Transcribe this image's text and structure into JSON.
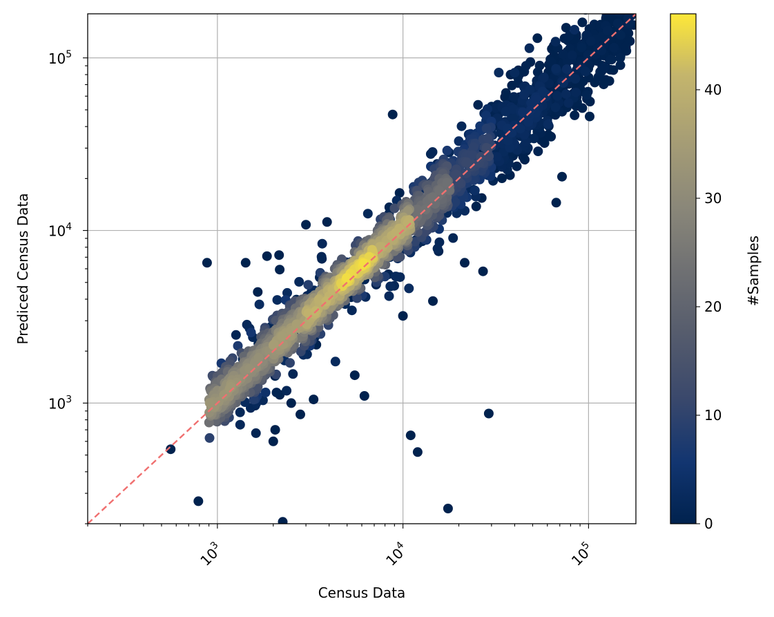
{
  "chart_data": {
    "type": "scatter",
    "title": "",
    "xlabel": "Census Data",
    "ylabel": "Prediced Census Data",
    "xscale": "log",
    "yscale": "log",
    "xlim": [
      200,
      180000
    ],
    "ylim": [
      200,
      180000
    ],
    "grid": true,
    "x_tick_labels": [
      {
        "base": "10",
        "exp": "3",
        "value": 1000
      },
      {
        "base": "10",
        "exp": "4",
        "value": 10000
      },
      {
        "base": "10",
        "exp": "5",
        "value": 100000
      }
    ],
    "y_tick_labels": [
      {
        "base": "10",
        "exp": "3",
        "value": 1000
      },
      {
        "base": "10",
        "exp": "4",
        "value": 10000
      },
      {
        "base": "10",
        "exp": "5",
        "value": 100000
      }
    ],
    "reference_line": {
      "style": "dashed",
      "color": "#f07070",
      "from": [
        200,
        200
      ],
      "to": [
        180000,
        180000
      ]
    },
    "colorbar": {
      "label": "#Samples",
      "colormap": "cividis",
      "range": [
        0,
        47
      ],
      "ticks": [
        "0",
        "10",
        "20",
        "30",
        "40"
      ],
      "tick_values": [
        0,
        10,
        20,
        30,
        40
      ]
    },
    "points_note_outliers": [
      {
        "x": 880,
        "y": 6500,
        "c": 0
      },
      {
        "x": 1420,
        "y": 6500,
        "c": 0
      },
      {
        "x": 1850,
        "y": 7100,
        "c": 0
      },
      {
        "x": 2150,
        "y": 7200,
        "c": 0
      },
      {
        "x": 1650,
        "y": 4400,
        "c": 0
      },
      {
        "x": 560,
        "y": 540,
        "c": 0
      },
      {
        "x": 790,
        "y": 270,
        "c": 0
      },
      {
        "x": 2250,
        "y": 205,
        "c": 0
      },
      {
        "x": 17500,
        "y": 245,
        "c": 0
      },
      {
        "x": 29000,
        "y": 870,
        "c": 0
      },
      {
        "x": 11000,
        "y": 650,
        "c": 0
      },
      {
        "x": 12000,
        "y": 520,
        "c": 0
      },
      {
        "x": 8800,
        "y": 47000,
        "c": 0
      },
      {
        "x": 67000,
        "y": 14500,
        "c": 0
      },
      {
        "x": 72000,
        "y": 20500,
        "c": 0
      },
      {
        "x": 27000,
        "y": 5800,
        "c": 0
      },
      {
        "x": 21500,
        "y": 6500,
        "c": 0
      },
      {
        "x": 6200,
        "y": 1100,
        "c": 0
      },
      {
        "x": 5500,
        "y": 1450,
        "c": 0
      },
      {
        "x": 2800,
        "y": 860,
        "c": 0
      },
      {
        "x": 2500,
        "y": 1000,
        "c": 0
      },
      {
        "x": 3300,
        "y": 1050,
        "c": 0
      },
      {
        "x": 2000,
        "y": 600,
        "c": 0
      },
      {
        "x": 2050,
        "y": 700,
        "c": 0
      },
      {
        "x": 3000,
        "y": 10800,
        "c": 0
      },
      {
        "x": 3900,
        "y": 11200,
        "c": 0
      },
      {
        "x": 10000,
        "y": 3200,
        "c": 0
      },
      {
        "x": 14500,
        "y": 3900,
        "c": 0
      },
      {
        "x": 125000,
        "y": 175000,
        "c": 0
      },
      {
        "x": 175000,
        "y": 155000,
        "c": 0
      },
      {
        "x": 167000,
        "y": 125000,
        "c": 0
      },
      {
        "x": 98000,
        "y": 58000,
        "c": 0
      },
      {
        "x": 108000,
        "y": 72000,
        "c": 0
      },
      {
        "x": 136000,
        "y": 85000,
        "c": 0
      },
      {
        "x": 53000,
        "y": 130000,
        "c": 0
      },
      {
        "x": 38000,
        "y": 80000,
        "c": 0
      },
      {
        "x": 101000,
        "y": 147000,
        "c": 0
      }
    ],
    "density_bands": [
      {
        "x_from": 900,
        "x_to": 1300,
        "c": 34
      },
      {
        "x_from": 1300,
        "x_to": 2000,
        "c": 32
      },
      {
        "x_from": 2000,
        "x_to": 3000,
        "c": 36
      },
      {
        "x_from": 3000,
        "x_to": 4500,
        "c": 42
      },
      {
        "x_from": 4500,
        "x_to": 7000,
        "c": 46
      },
      {
        "x_from": 7000,
        "x_to": 11000,
        "c": 40
      },
      {
        "x_from": 11000,
        "x_to": 18000,
        "c": 24
      },
      {
        "x_from": 18000,
        "x_to": 30000,
        "c": 12
      },
      {
        "x_from": 30000,
        "x_to": 60000,
        "c": 4
      },
      {
        "x_from": 60000,
        "x_to": 170000,
        "c": 1
      }
    ]
  }
}
